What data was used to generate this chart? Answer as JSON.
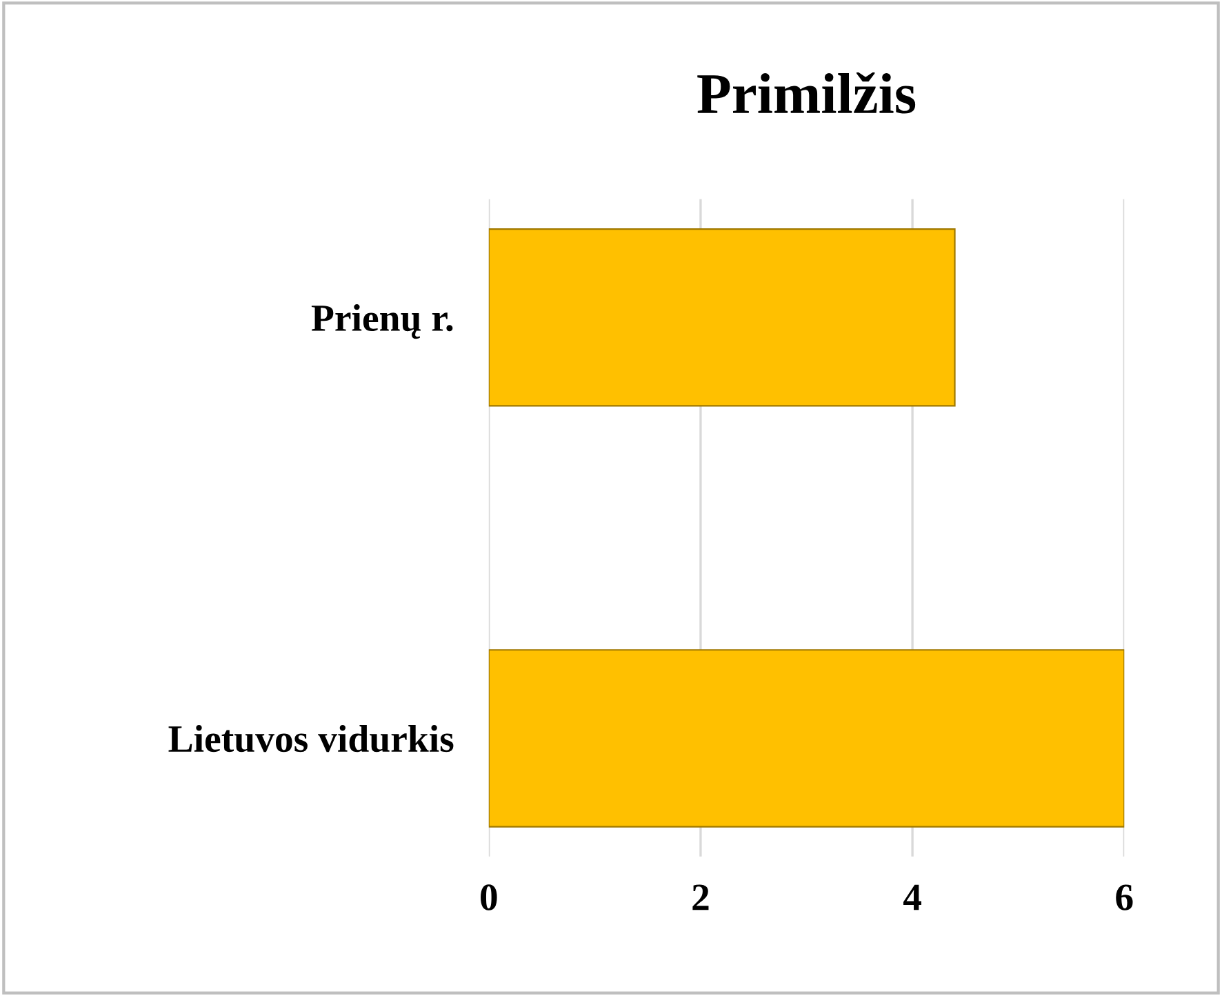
{
  "chart_data": {
    "type": "bar",
    "orientation": "horizontal",
    "title": "Primilžis",
    "categories": [
      "Prienų r.",
      "Lietuvos vidurkis"
    ],
    "values": [
      4.4,
      6.0
    ],
    "color": "#ffc000",
    "xlim": [
      0,
      6
    ],
    "xticks": [
      0,
      2,
      4,
      6
    ],
    "grid": "x"
  }
}
